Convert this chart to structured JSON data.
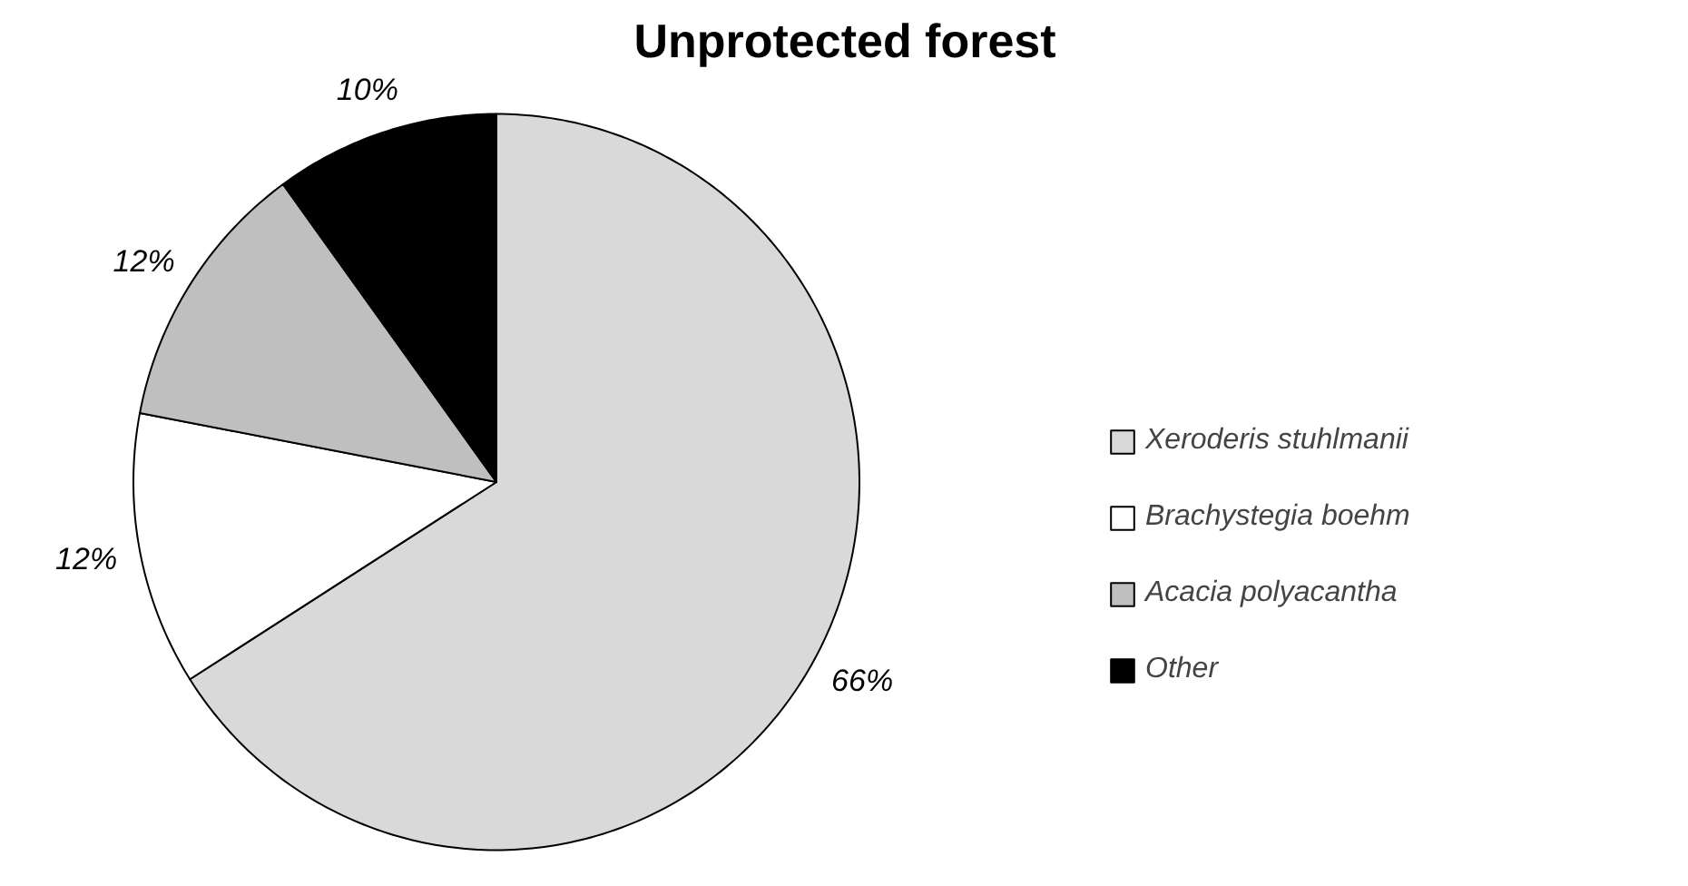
{
  "chart_data": {
    "type": "pie",
    "title": "Unprotected forest",
    "categories": [
      "Xeroderis stuhlmanii",
      "Brachystegia boehm",
      "Acacia polyacantha",
      "Other"
    ],
    "values": [
      66,
      12,
      12,
      10
    ],
    "colors": [
      "#d9d9d9",
      "#ffffff",
      "#bfbfbf",
      "#000000"
    ],
    "value_labels": [
      "66%",
      "12%",
      "12%",
      "10%"
    ],
    "legend": "right"
  }
}
